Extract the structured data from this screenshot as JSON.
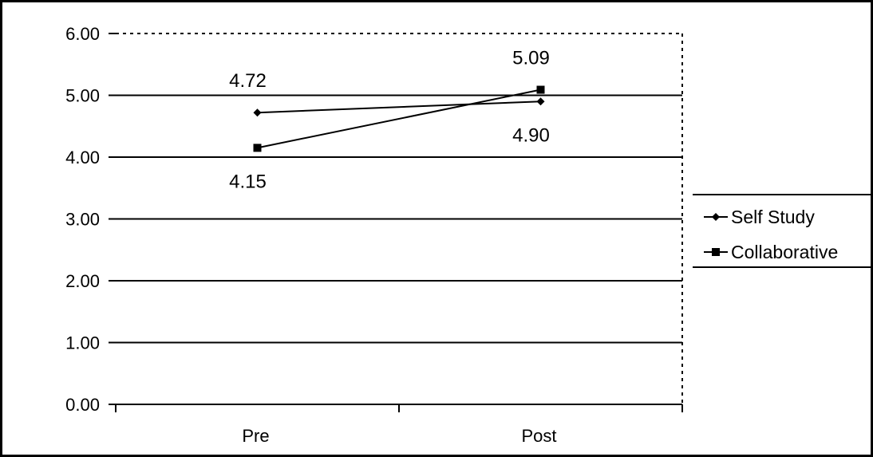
{
  "chart_data": {
    "type": "line",
    "categories": [
      "Pre",
      "Post"
    ],
    "series": [
      {
        "name": "Self Study",
        "values": [
          4.72,
          4.9
        ],
        "labels": [
          "4.72",
          "4.90"
        ],
        "marker": "diamond"
      },
      {
        "name": "Collaborative",
        "values": [
          4.15,
          5.09
        ],
        "labels": [
          "4.15",
          "5.09"
        ],
        "marker": "square"
      }
    ],
    "yticks": [
      "0.00",
      "1.00",
      "2.00",
      "3.00",
      "4.00",
      "5.00",
      "6.00"
    ],
    "ylim": [
      0,
      6
    ],
    "grid": true,
    "legend_position": "right",
    "colors": {
      "line": "#000000",
      "background": "#ffffff"
    }
  }
}
